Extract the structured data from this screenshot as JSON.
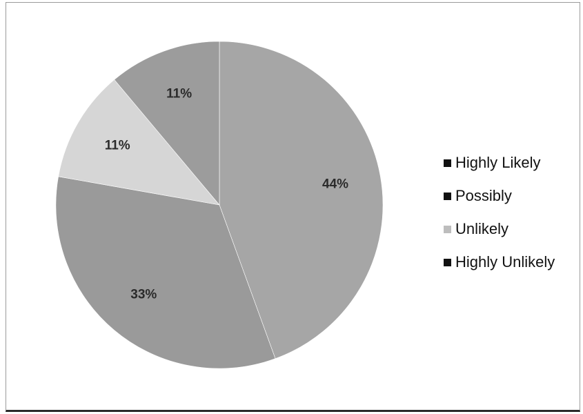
{
  "chart_data": {
    "type": "pie",
    "title": "",
    "slices": [
      {
        "label": "Highly Likely",
        "value": 44,
        "display": "44%",
        "color": "#a6a6a6",
        "swatch": "#111111"
      },
      {
        "label": "Possibly",
        "value": 33,
        "display": "33%",
        "color": "#9a9a9a",
        "swatch": "#111111"
      },
      {
        "label": "Unlikely",
        "value": 11,
        "display": "11%",
        "color": "#d6d6d6",
        "swatch": "#bdbdbd"
      },
      {
        "label": "Highly Unlikely",
        "value": 11,
        "display": "11%",
        "color": "#9c9c9c",
        "swatch": "#111111"
      }
    ],
    "start_angle_deg": 0,
    "direction": "clockwise",
    "legend_position": "right"
  }
}
